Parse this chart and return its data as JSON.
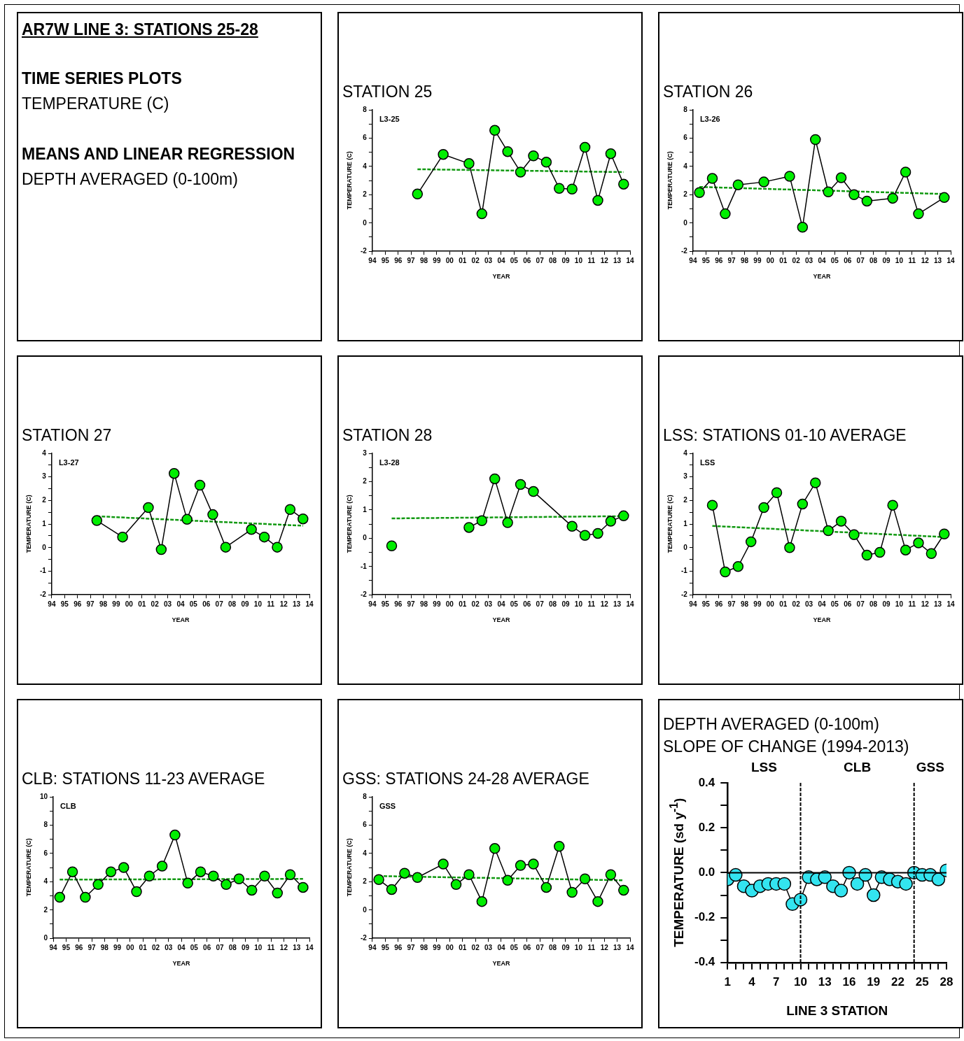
{
  "chart_data": [
    {
      "type": "other",
      "title": "AR7W LINE 3: STATIONS 25-28",
      "annotations": [
        "TIME SERIES PLOTS",
        "TEMPERATURE (C)",
        "MEANS AND LINEAR REGRESSION",
        "DEPTH AVERAGED (0-100m)"
      ]
    },
    {
      "type": "line",
      "title": "STATION 25",
      "xlabel": "YEAR",
      "ylabel": "TEMPERATURE (C)",
      "annotations": [
        "L3-25"
      ],
      "xlim": [
        1994,
        2014
      ],
      "xticks": [
        {
          "value": 1994,
          "label": "94"
        },
        {
          "value": 1995,
          "label": "95"
        },
        {
          "value": 1996,
          "label": "96"
        },
        {
          "value": 1997,
          "label": "97"
        },
        {
          "value": 1998,
          "label": "98"
        },
        {
          "value": 1999,
          "label": "99"
        },
        {
          "value": 2000,
          "label": "00"
        },
        {
          "value": 2001,
          "label": "01"
        },
        {
          "value": 2002,
          "label": "02"
        },
        {
          "value": 2003,
          "label": "03"
        },
        {
          "value": 2004,
          "label": "04"
        },
        {
          "value": 2005,
          "label": "05"
        },
        {
          "value": 2006,
          "label": "06"
        },
        {
          "value": 2007,
          "label": "07"
        },
        {
          "value": 2008,
          "label": "08"
        },
        {
          "value": 2009,
          "label": "09"
        },
        {
          "value": 2010,
          "label": "10"
        },
        {
          "value": 2011,
          "label": "11"
        },
        {
          "value": 2012,
          "label": "12"
        },
        {
          "value": 2013,
          "label": "13"
        },
        {
          "value": 2014,
          "label": "14"
        }
      ],
      "ylim": [
        -2,
        8
      ],
      "yticks": [
        -2,
        {
          "value": -1,
          "label": null
        },
        0,
        {
          "value": 1,
          "label": null
        },
        2,
        {
          "value": 3,
          "label": null
        },
        4,
        {
          "value": 5,
          "label": null
        },
        6,
        {
          "value": 7,
          "label": null
        },
        8
      ],
      "series": [
        {
          "color": "#00ee00",
          "marker": "circle",
          "x": [
            1997.5,
            1999.5,
            2001.5,
            2002.5,
            2003.5,
            2004.5,
            2005.5,
            2006.5,
            2007.5,
            2008.5,
            2009.5,
            2010.5,
            2011.5,
            2012.5,
            2013.5
          ],
          "values": [
            2.05,
            4.85,
            4.2,
            0.65,
            6.55,
            5.05,
            3.6,
            4.75,
            4.3,
            2.45,
            2.4,
            5.35,
            1.6,
            4.9,
            2.75
          ]
        },
        {
          "color": "#119911",
          "marker": "none",
          "line_style": "dashed",
          "x": [
            1997.5,
            2013.5
          ],
          "values": [
            3.8,
            3.6
          ]
        }
      ]
    },
    {
      "type": "line",
      "title": "STATION 26",
      "xlabel": "YEAR",
      "ylabel": "TEMPERATURE (C)",
      "annotations": [
        "L3-26"
      ],
      "xlim": [
        1994,
        2014
      ],
      "xticks": [
        {
          "value": 1994,
          "label": "94"
        },
        {
          "value": 1995,
          "label": "95"
        },
        {
          "value": 1996,
          "label": "96"
        },
        {
          "value": 1997,
          "label": "97"
        },
        {
          "value": 1998,
          "label": "98"
        },
        {
          "value": 1999,
          "label": "99"
        },
        {
          "value": 2000,
          "label": "00"
        },
        {
          "value": 2001,
          "label": "01"
        },
        {
          "value": 2002,
          "label": "02"
        },
        {
          "value": 2003,
          "label": "03"
        },
        {
          "value": 2004,
          "label": "04"
        },
        {
          "value": 2005,
          "label": "05"
        },
        {
          "value": 2006,
          "label": "06"
        },
        {
          "value": 2007,
          "label": "07"
        },
        {
          "value": 2008,
          "label": "08"
        },
        {
          "value": 2009,
          "label": "09"
        },
        {
          "value": 2010,
          "label": "10"
        },
        {
          "value": 2011,
          "label": "11"
        },
        {
          "value": 2012,
          "label": "12"
        },
        {
          "value": 2013,
          "label": "13"
        },
        {
          "value": 2014,
          "label": "14"
        }
      ],
      "ylim": [
        -2,
        8
      ],
      "yticks": [
        -2,
        {
          "value": -1,
          "label": null
        },
        0,
        {
          "value": 1,
          "label": null
        },
        2,
        {
          "value": 3,
          "label": null
        },
        4,
        {
          "value": 5,
          "label": null
        },
        6,
        {
          "value": 7,
          "label": null
        },
        8
      ],
      "series": [
        {
          "color": "#00ee00",
          "marker": "circle",
          "x": [
            1994.5,
            1995.5,
            1996.5,
            1997.5,
            1999.5,
            2001.5,
            2002.5,
            2003.5,
            2004.5,
            2005.5,
            2006.5,
            2007.5,
            2009.5,
            2010.5,
            2011.5,
            2013.5
          ],
          "values": [
            2.15,
            3.15,
            0.65,
            2.7,
            2.9,
            3.3,
            -0.3,
            5.9,
            2.2,
            3.2,
            2.0,
            1.55,
            1.75,
            3.6,
            0.65,
            1.8
          ]
        },
        {
          "color": "#119911",
          "marker": "none",
          "line_style": "dashed",
          "x": [
            1994.5,
            2013.5
          ],
          "values": [
            2.55,
            2.05
          ]
        }
      ]
    },
    {
      "type": "line",
      "title": "STATION 27",
      "xlabel": "YEAR",
      "ylabel": "TEMPERATURE (C)",
      "annotations": [
        "L3-27"
      ],
      "xlim": [
        1994,
        2014
      ],
      "xticks": [
        {
          "value": 1994,
          "label": "94"
        },
        {
          "value": 1995,
          "label": "95"
        },
        {
          "value": 1996,
          "label": "96"
        },
        {
          "value": 1997,
          "label": "97"
        },
        {
          "value": 1998,
          "label": "98"
        },
        {
          "value": 1999,
          "label": "99"
        },
        {
          "value": 2000,
          "label": "00"
        },
        {
          "value": 2001,
          "label": "01"
        },
        {
          "value": 2002,
          "label": "02"
        },
        {
          "value": 2003,
          "label": "03"
        },
        {
          "value": 2004,
          "label": "04"
        },
        {
          "value": 2005,
          "label": "05"
        },
        {
          "value": 2006,
          "label": "06"
        },
        {
          "value": 2007,
          "label": "07"
        },
        {
          "value": 2008,
          "label": "08"
        },
        {
          "value": 2009,
          "label": "09"
        },
        {
          "value": 2010,
          "label": "10"
        },
        {
          "value": 2011,
          "label": "11"
        },
        {
          "value": 2012,
          "label": "12"
        },
        {
          "value": 2013,
          "label": "13"
        },
        {
          "value": 2014,
          "label": "14"
        }
      ],
      "ylim": [
        -2,
        4
      ],
      "yticks": [
        -2,
        {
          "value": -1.5,
          "label": null
        },
        -1,
        {
          "value": -0.5,
          "label": null
        },
        0,
        {
          "value": 0.5,
          "label": null
        },
        1,
        {
          "value": 1.5,
          "label": null
        },
        2,
        {
          "value": 2.5,
          "label": null
        },
        3,
        {
          "value": 3.5,
          "label": null
        },
        4
      ],
      "series": [
        {
          "color": "#00ee00",
          "marker": "circle",
          "x": [
            1997.5,
            1999.5,
            2001.5,
            2002.5,
            2003.5,
            2004.5,
            2005.5,
            2006.5,
            2007.5,
            2009.5,
            2010.5,
            2011.5,
            2012.5,
            2013.5
          ],
          "values": [
            1.15,
            0.45,
            1.7,
            -0.08,
            3.15,
            1.2,
            2.65,
            1.4,
            0.02,
            0.77,
            0.45,
            0.02,
            1.62,
            1.22
          ]
        },
        {
          "color": "#119911",
          "marker": "none",
          "line_style": "dashed",
          "x": [
            1997.5,
            2013.5
          ],
          "values": [
            1.33,
            0.93
          ]
        }
      ]
    },
    {
      "type": "line",
      "title": "STATION 28",
      "xlabel": "YEAR",
      "ylabel": "TEMPERATURE (C)",
      "annotations": [
        "L3-28"
      ],
      "xlim": [
        1994,
        2014
      ],
      "xticks": [
        {
          "value": 1994,
          "label": "94"
        },
        {
          "value": 1995,
          "label": "95"
        },
        {
          "value": 1996,
          "label": "96"
        },
        {
          "value": 1997,
          "label": "97"
        },
        {
          "value": 1998,
          "label": "98"
        },
        {
          "value": 1999,
          "label": "99"
        },
        {
          "value": 2000,
          "label": "00"
        },
        {
          "value": 2001,
          "label": "01"
        },
        {
          "value": 2002,
          "label": "02"
        },
        {
          "value": 2003,
          "label": "03"
        },
        {
          "value": 2004,
          "label": "04"
        },
        {
          "value": 2005,
          "label": "05"
        },
        {
          "value": 2006,
          "label": "06"
        },
        {
          "value": 2007,
          "label": "07"
        },
        {
          "value": 2008,
          "label": "08"
        },
        {
          "value": 2009,
          "label": "09"
        },
        {
          "value": 2010,
          "label": "10"
        },
        {
          "value": 2011,
          "label": "11"
        },
        {
          "value": 2012,
          "label": "12"
        },
        {
          "value": 2013,
          "label": "13"
        },
        {
          "value": 2014,
          "label": "14"
        }
      ],
      "ylim": [
        -2,
        3
      ],
      "yticks": [
        -2,
        {
          "value": -1.5,
          "label": null
        },
        -1,
        {
          "value": -0.5,
          "label": null
        },
        0,
        {
          "value": 0.5,
          "label": null
        },
        1,
        {
          "value": 1.5,
          "label": null
        },
        2,
        {
          "value": 2.5,
          "label": null
        },
        3
      ],
      "series": [
        {
          "color": "#00ee00",
          "marker": "circle",
          "x": [
            1995.5,
            1998.5,
            2001.5,
            2002.5,
            2003.5,
            2004.5,
            2005.5,
            2006.5,
            2009.5,
            2010.5,
            2011.5,
            2012.5,
            2013.5
          ],
          "values": [
            -0.27,
            null,
            0.38,
            0.62,
            2.1,
            0.55,
            1.9,
            1.65,
            0.42,
            0.1,
            0.17,
            0.6,
            0.79
          ]
        },
        {
          "color": "#119911",
          "marker": "none",
          "line_style": "dashed",
          "x": [
            1995.5,
            2013.5
          ],
          "values": [
            0.7,
            0.78
          ]
        }
      ]
    },
    {
      "type": "line",
      "title": "LSS: STATIONS 01-10 AVERAGE",
      "xlabel": "YEAR",
      "ylabel": "TEMPERATURE (C)",
      "annotations": [
        "LSS"
      ],
      "xlim": [
        1994,
        2014
      ],
      "xticks": [
        {
          "value": 1994,
          "label": "94"
        },
        {
          "value": 1995,
          "label": "95"
        },
        {
          "value": 1996,
          "label": "96"
        },
        {
          "value": 1997,
          "label": "97"
        },
        {
          "value": 1998,
          "label": "98"
        },
        {
          "value": 1999,
          "label": "99"
        },
        {
          "value": 2000,
          "label": "00"
        },
        {
          "value": 2001,
          "label": "01"
        },
        {
          "value": 2002,
          "label": "02"
        },
        {
          "value": 2003,
          "label": "03"
        },
        {
          "value": 2004,
          "label": "04"
        },
        {
          "value": 2005,
          "label": "05"
        },
        {
          "value": 2006,
          "label": "06"
        },
        {
          "value": 2007,
          "label": "07"
        },
        {
          "value": 2008,
          "label": "08"
        },
        {
          "value": 2009,
          "label": "09"
        },
        {
          "value": 2010,
          "label": "10"
        },
        {
          "value": 2011,
          "label": "11"
        },
        {
          "value": 2012,
          "label": "12"
        },
        {
          "value": 2013,
          "label": "13"
        },
        {
          "value": 2014,
          "label": "14"
        }
      ],
      "ylim": [
        -2,
        4
      ],
      "yticks": [
        -2,
        {
          "value": -1.5,
          "label": null
        },
        -1,
        {
          "value": -0.5,
          "label": null
        },
        0,
        {
          "value": 0.5,
          "label": null
        },
        1,
        {
          "value": 1.5,
          "label": null
        },
        2,
        {
          "value": 2.5,
          "label": null
        },
        3,
        {
          "value": 3.5,
          "label": null
        },
        4
      ],
      "series": [
        {
          "color": "#00ee00",
          "marker": "circle",
          "x": [
            1995.5,
            1996.5,
            1997.5,
            1998.5,
            1999.5,
            2000.5,
            2001.5,
            2002.5,
            2003.5,
            2004.5,
            2005.5,
            2006.5,
            2007.5,
            2008.5,
            2009.5,
            2010.5,
            2011.5,
            2012.5,
            2013.5
          ],
          "values": [
            1.8,
            -1.03,
            -0.8,
            0.25,
            1.7,
            2.33,
            0.0,
            1.85,
            2.75,
            0.72,
            1.12,
            0.55,
            -0.32,
            -0.2,
            1.8,
            -0.1,
            0.2,
            -0.25,
            0.58
          ]
        },
        {
          "color": "#119911",
          "marker": "none",
          "line_style": "dashed",
          "x": [
            1995.5,
            2013.5
          ],
          "values": [
            0.92,
            0.45
          ]
        }
      ]
    },
    {
      "type": "line",
      "title": "CLB: STATIONS 11-23 AVERAGE",
      "xlabel": "YEAR",
      "ylabel": "TEMPERATURE (C)",
      "annotations": [
        "CLB"
      ],
      "xlim": [
        1994,
        2014
      ],
      "xticks": [
        {
          "value": 1994,
          "label": "94"
        },
        {
          "value": 1995,
          "label": "95"
        },
        {
          "value": 1996,
          "label": "96"
        },
        {
          "value": 1997,
          "label": "97"
        },
        {
          "value": 1998,
          "label": "98"
        },
        {
          "value": 1999,
          "label": "99"
        },
        {
          "value": 2000,
          "label": "00"
        },
        {
          "value": 2001,
          "label": "01"
        },
        {
          "value": 2002,
          "label": "02"
        },
        {
          "value": 2003,
          "label": "03"
        },
        {
          "value": 2004,
          "label": "04"
        },
        {
          "value": 2005,
          "label": "05"
        },
        {
          "value": 2006,
          "label": "06"
        },
        {
          "value": 2007,
          "label": "07"
        },
        {
          "value": 2008,
          "label": "08"
        },
        {
          "value": 2009,
          "label": "09"
        },
        {
          "value": 2010,
          "label": "10"
        },
        {
          "value": 2011,
          "label": "11"
        },
        {
          "value": 2012,
          "label": "12"
        },
        {
          "value": 2013,
          "label": "13"
        },
        {
          "value": 2014,
          "label": "14"
        }
      ],
      "ylim": [
        0,
        10
      ],
      "yticks": [
        0,
        {
          "value": 1,
          "label": null
        },
        2,
        {
          "value": 3,
          "label": null
        },
        4,
        {
          "value": 5,
          "label": null
        },
        6,
        {
          "value": 7,
          "label": null
        },
        8,
        {
          "value": 9,
          "label": null
        },
        10
      ],
      "series": [
        {
          "color": "#00ee00",
          "marker": "circle",
          "x": [
            1994.5,
            1995.5,
            1996.5,
            1997.5,
            1998.5,
            1999.5,
            2000.5,
            2001.5,
            2002.5,
            2003.5,
            2004.5,
            2005.5,
            2006.5,
            2007.5,
            2008.5,
            2009.5,
            2010.5,
            2011.5,
            2012.5,
            2013.5
          ],
          "values": [
            2.9,
            4.7,
            2.9,
            3.8,
            4.7,
            5.0,
            3.3,
            4.4,
            5.1,
            7.3,
            3.9,
            4.7,
            4.4,
            3.8,
            4.2,
            3.4,
            4.4,
            3.2,
            4.5,
            3.6
          ]
        },
        {
          "color": "#119911",
          "marker": "none",
          "line_style": "dashed",
          "x": [
            1994.5,
            2013.5
          ],
          "values": [
            4.15,
            4.2
          ]
        }
      ]
    },
    {
      "type": "line",
      "title": "GSS: STATIONS 24-28 AVERAGE",
      "xlabel": "YEAR",
      "ylabel": "TEMPERATURE (C)",
      "annotations": [
        "GSS"
      ],
      "xlim": [
        1994,
        2014
      ],
      "xticks": [
        {
          "value": 1994,
          "label": "94"
        },
        {
          "value": 1995,
          "label": "95"
        },
        {
          "value": 1996,
          "label": "96"
        },
        {
          "value": 1997,
          "label": "97"
        },
        {
          "value": 1998,
          "label": "98"
        },
        {
          "value": 1999,
          "label": "99"
        },
        {
          "value": 2000,
          "label": "00"
        },
        {
          "value": 2001,
          "label": "01"
        },
        {
          "value": 2002,
          "label": "02"
        },
        {
          "value": 2003,
          "label": "03"
        },
        {
          "value": 2004,
          "label": "04"
        },
        {
          "value": 2005,
          "label": "05"
        },
        {
          "value": 2006,
          "label": "06"
        },
        {
          "value": 2007,
          "label": "07"
        },
        {
          "value": 2008,
          "label": "08"
        },
        {
          "value": 2009,
          "label": "09"
        },
        {
          "value": 2010,
          "label": "10"
        },
        {
          "value": 2011,
          "label": "11"
        },
        {
          "value": 2012,
          "label": "12"
        },
        {
          "value": 2013,
          "label": "13"
        },
        {
          "value": 2014,
          "label": "14"
        }
      ],
      "ylim": [
        -2,
        8
      ],
      "yticks": [
        -2,
        {
          "value": -1,
          "label": null
        },
        0,
        {
          "value": 1,
          "label": null
        },
        2,
        {
          "value": 3,
          "label": null
        },
        4,
        {
          "value": 5,
          "label": null
        },
        6,
        {
          "value": 7,
          "label": null
        },
        8
      ],
      "series": [
        {
          "color": "#00ee00",
          "marker": "circle",
          "x": [
            1994.5,
            1995.5,
            1996.5,
            1997.5,
            1999.5,
            2000.5,
            2001.5,
            2002.5,
            2003.5,
            2004.5,
            2005.5,
            2006.5,
            2007.5,
            2008.5,
            2009.5,
            2010.5,
            2011.5,
            2012.5,
            2013.5
          ],
          "values": [
            2.15,
            1.45,
            2.6,
            2.3,
            3.25,
            1.8,
            2.5,
            0.6,
            4.35,
            2.1,
            3.15,
            3.25,
            1.6,
            4.5,
            1.25,
            2.2,
            0.6,
            2.5,
            1.4
          ]
        },
        {
          "color": "#119911",
          "marker": "none",
          "line_style": "dashed",
          "x": [
            1994.5,
            2013.5
          ],
          "values": [
            2.4,
            2.1
          ]
        }
      ]
    },
    {
      "type": "line",
      "title": "DEPTH AVERAGED (0-100m)",
      "subtitle": "SLOPE OF CHANGE (1994-2013)",
      "xlabel": "LINE 3 STATION",
      "ylabel": "TEMPERATURE (sd y$^{-1}$)",
      "annotations": [
        "LSS",
        "CLB",
        "GSS"
      ],
      "xlim": [
        1,
        28
      ],
      "xticks": [
        1,
        {
          "value": 2,
          "label": null
        },
        {
          "value": 3,
          "label": null
        },
        4,
        {
          "value": 5,
          "label": null
        },
        {
          "value": 6,
          "label": null
        },
        7,
        {
          "value": 8,
          "label": null
        },
        {
          "value": 9,
          "label": null
        },
        10,
        {
          "value": 11,
          "label": null
        },
        {
          "value": 12,
          "label": null
        },
        13,
        {
          "value": 14,
          "label": null
        },
        {
          "value": 15,
          "label": null
        },
        16,
        {
          "value": 17,
          "label": null
        },
        {
          "value": 18,
          "label": null
        },
        19,
        {
          "value": 20,
          "label": null
        },
        {
          "value": 21,
          "label": null
        },
        22,
        {
          "value": 23,
          "label": null
        },
        {
          "value": 24,
          "label": null
        },
        25,
        {
          "value": 26,
          "label": null
        },
        {
          "value": 27,
          "label": null
        },
        28
      ],
      "ylim": [
        -0.4,
        0.4
      ],
      "yticks": [
        -0.4,
        {
          "value": -0.3,
          "label": null
        },
        -0.2,
        {
          "value": -0.1,
          "label": null
        },
        {
          "value": 0,
          "label": "0.0"
        },
        {
          "value": 0.1,
          "label": null
        },
        0.2,
        {
          "value": 0.3,
          "label": null
        },
        0.4
      ],
      "ref_lines": [
        {
          "axis": "y",
          "value": 0,
          "color": "#000000",
          "line_style": "solid"
        },
        {
          "axis": "x",
          "value": 10,
          "color": "#000000",
          "line_style": "dashed"
        },
        {
          "axis": "x",
          "value": 24,
          "color": "#000000",
          "line_style": "dashed"
        }
      ],
      "series": [
        {
          "color": "#33e4f0",
          "marker": "circle",
          "x": [
            1,
            2,
            3,
            4,
            5,
            6,
            7,
            8,
            9,
            10,
            11,
            12,
            13,
            14,
            15,
            16,
            17,
            18,
            19,
            20,
            21,
            22,
            23,
            24,
            25,
            26,
            27,
            28
          ],
          "values": [
            -0.03,
            -0.01,
            -0.06,
            -0.08,
            -0.06,
            -0.05,
            -0.05,
            -0.05,
            -0.14,
            -0.12,
            -0.02,
            -0.03,
            -0.02,
            -0.06,
            -0.08,
            0.0,
            -0.05,
            -0.01,
            -0.1,
            -0.02,
            -0.03,
            -0.04,
            -0.05,
            0.0,
            -0.01,
            -0.01,
            -0.03,
            0.01
          ]
        }
      ]
    }
  ]
}
